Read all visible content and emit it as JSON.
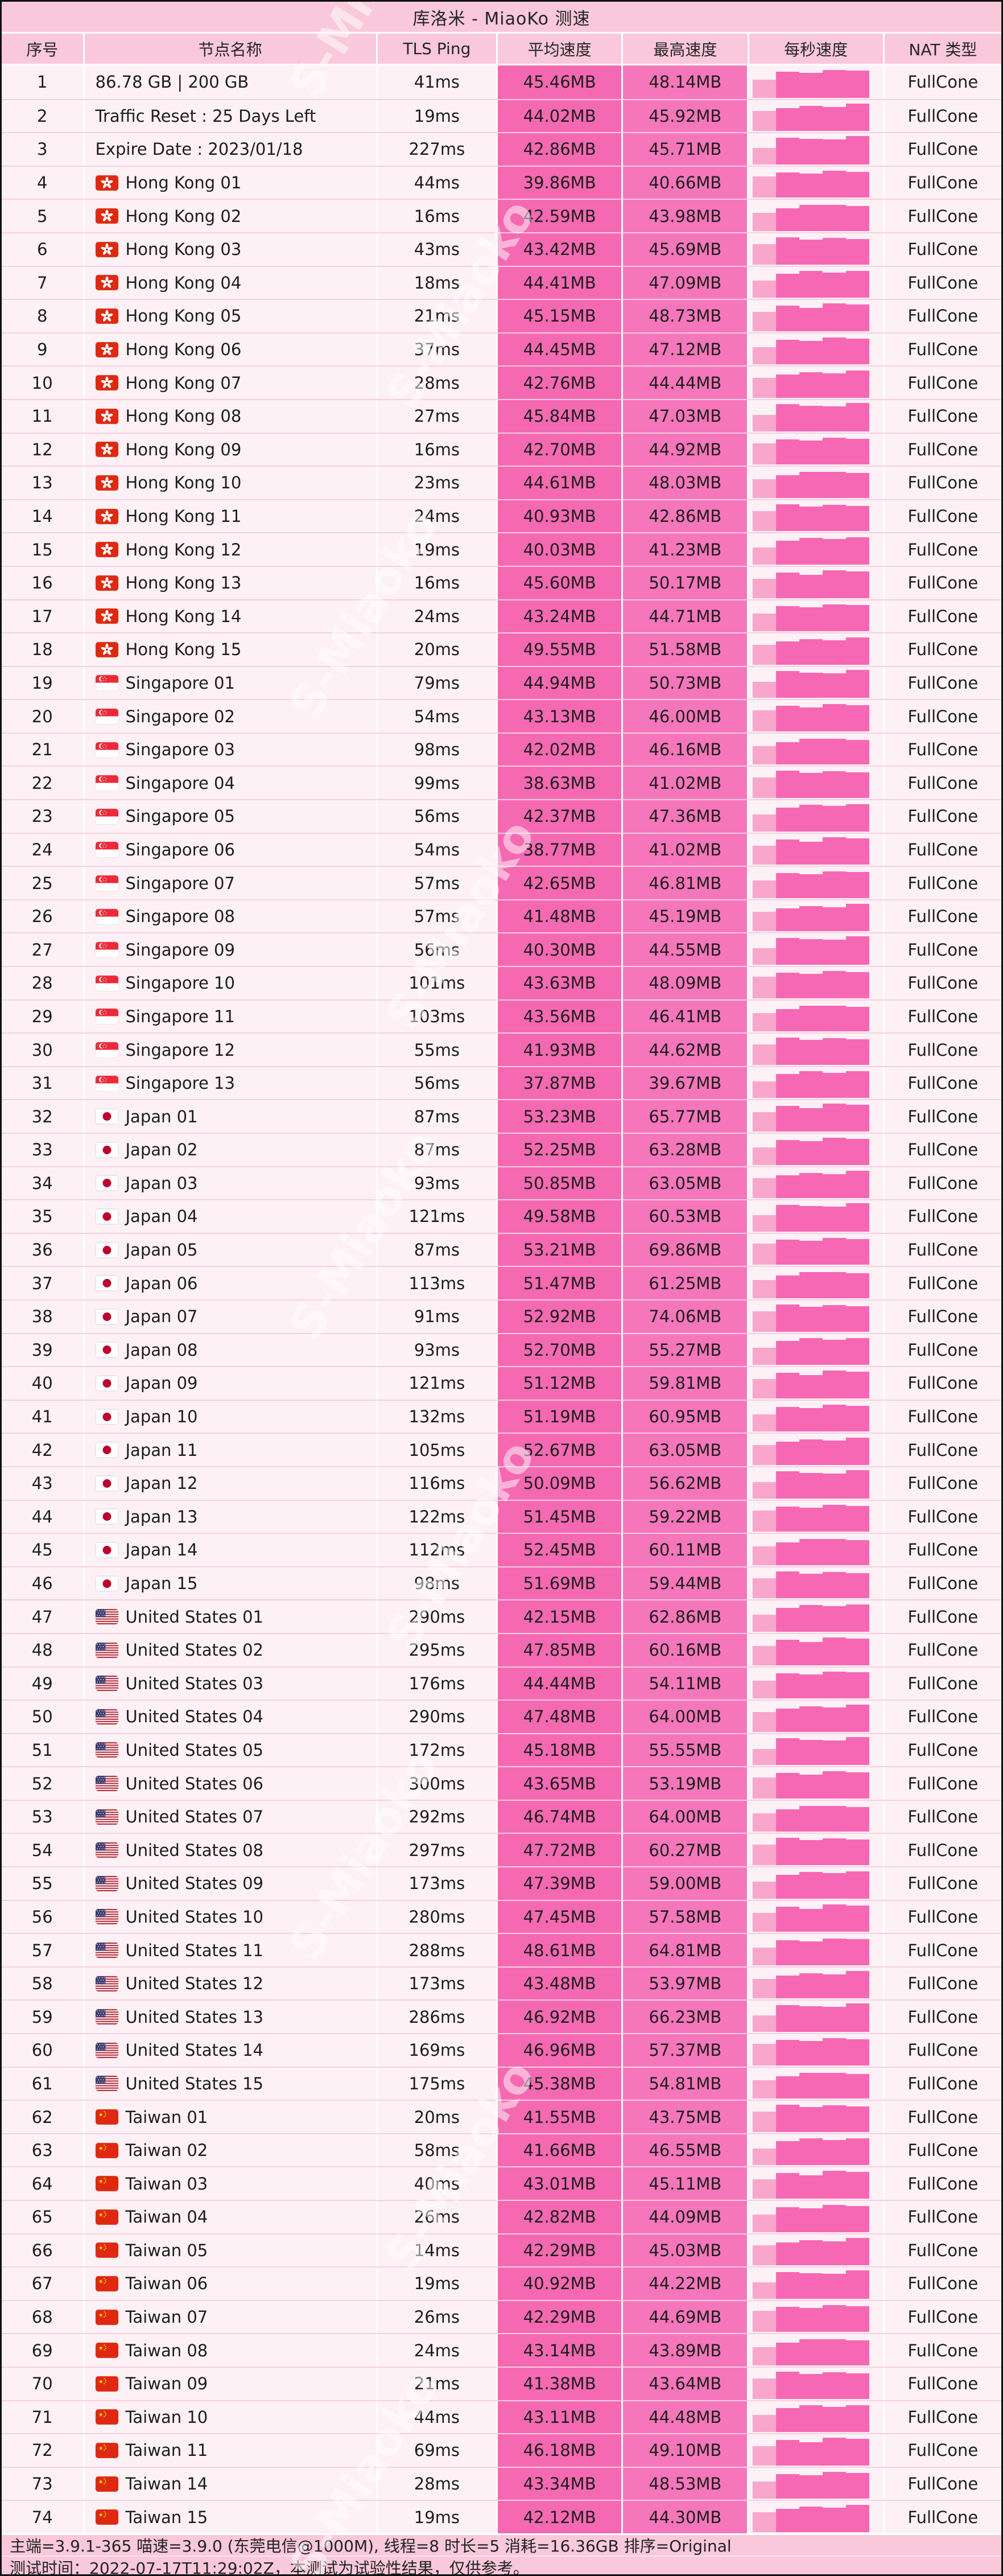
{
  "title": "库洛米 - MiaoKo 测速",
  "watermark": "S-Miaoko",
  "columns": [
    "序号",
    "节点名称",
    "TLS Ping",
    "平均速度",
    "最高速度",
    "每秒速度",
    "NAT 类型"
  ],
  "colors": {
    "header_bg": "#F9C8DA",
    "row_bg": "#FDF1F6",
    "avg_cell_pink": "#F569B2",
    "max_cell_pink": "#F676BB",
    "spark_bar": "#F668B3",
    "spark_bar_light": "#F9A6CD",
    "row_separator": "#F8CFE0"
  },
  "footer": {
    "line1": "主端=3.9.1-365 喵速=3.9.0 (东莞电信@1000M), 线程=8 时长=5 消耗=16.36GB 排序=Original",
    "line2": "测试时间：2022-07-17T11:29:02Z，本测试为试验性结果，仅供参考。"
  },
  "rows": [
    {
      "no": "1",
      "flag": null,
      "name": "86.78 GB | 200 GB",
      "ping": "41ms",
      "avg": "45.46MB",
      "max": "48.14MB",
      "nat": "FullCone",
      "spark": [
        62,
        88,
        84,
        95,
        92
      ]
    },
    {
      "no": "2",
      "flag": null,
      "name": "Traffic Reset : 25 Days Left",
      "ping": "19ms",
      "avg": "44.02MB",
      "max": "45.92MB",
      "nat": "FullCone",
      "spark": [
        70,
        82,
        90,
        86,
        97
      ]
    },
    {
      "no": "3",
      "flag": null,
      "name": "Expire Date : 2023/01/18",
      "ping": "227ms",
      "avg": "42.86MB",
      "max": "45.71MB",
      "nat": "FullCone",
      "spark": [
        58,
        95,
        90,
        88,
        100
      ]
    },
    {
      "no": "4",
      "flag": "hk",
      "name": "Hong Kong 01",
      "ping": "44ms",
      "avg": "39.86MB",
      "max": "40.66MB",
      "nat": "FullCone",
      "spark": [
        75,
        90,
        85,
        96,
        92
      ]
    },
    {
      "no": "5",
      "flag": "hk",
      "name": "Hong Kong 02",
      "ping": "16ms",
      "avg": "42.59MB",
      "max": "43.98MB",
      "nat": "FullCone",
      "spark": [
        65,
        80,
        92,
        92,
        88
      ]
    },
    {
      "no": "6",
      "flag": "hk",
      "name": "Hong Kong 03",
      "ping": "43ms",
      "avg": "43.42MB",
      "max": "45.69MB",
      "nat": "FullCone",
      "spark": [
        72,
        96,
        88,
        94,
        90
      ]
    },
    {
      "no": "7",
      "flag": "hk",
      "name": "Hong Kong 04",
      "ping": "18ms",
      "avg": "44.41MB",
      "max": "47.09MB",
      "nat": "FullCone",
      "spark": [
        60,
        85,
        95,
        90,
        96
      ]
    },
    {
      "no": "8",
      "flag": "hk",
      "name": "Hong Kong 05",
      "ping": "21ms",
      "avg": "45.15MB",
      "max": "48.73MB",
      "nat": "FullCone",
      "spark": [
        68,
        90,
        82,
        98,
        94
      ]
    },
    {
      "no": "9",
      "flag": "hk",
      "name": "Hong Kong 06",
      "ping": "37ms",
      "avg": "44.45MB",
      "max": "47.12MB",
      "nat": "FullCone",
      "spark": [
        62,
        88,
        84,
        95,
        92
      ]
    },
    {
      "no": "10",
      "flag": "hk",
      "name": "Hong Kong 07",
      "ping": "28ms",
      "avg": "42.76MB",
      "max": "44.44MB",
      "nat": "FullCone",
      "spark": [
        70,
        82,
        90,
        86,
        97
      ]
    },
    {
      "no": "11",
      "flag": "hk",
      "name": "Hong Kong 08",
      "ping": "27ms",
      "avg": "45.84MB",
      "max": "47.03MB",
      "nat": "FullCone",
      "spark": [
        58,
        95,
        90,
        88,
        100
      ]
    },
    {
      "no": "12",
      "flag": "hk",
      "name": "Hong Kong 09",
      "ping": "16ms",
      "avg": "42.70MB",
      "max": "44.92MB",
      "nat": "FullCone",
      "spark": [
        75,
        90,
        85,
        96,
        92
      ]
    },
    {
      "no": "13",
      "flag": "hk",
      "name": "Hong Kong 10",
      "ping": "23ms",
      "avg": "44.61MB",
      "max": "48.03MB",
      "nat": "FullCone",
      "spark": [
        65,
        80,
        92,
        92,
        88
      ]
    },
    {
      "no": "14",
      "flag": "hk",
      "name": "Hong Kong 11",
      "ping": "24ms",
      "avg": "40.93MB",
      "max": "42.86MB",
      "nat": "FullCone",
      "spark": [
        72,
        96,
        88,
        94,
        90
      ]
    },
    {
      "no": "15",
      "flag": "hk",
      "name": "Hong Kong 12",
      "ping": "19ms",
      "avg": "40.03MB",
      "max": "41.23MB",
      "nat": "FullCone",
      "spark": [
        60,
        85,
        95,
        90,
        96
      ]
    },
    {
      "no": "16",
      "flag": "hk",
      "name": "Hong Kong 13",
      "ping": "16ms",
      "avg": "45.60MB",
      "max": "50.17MB",
      "nat": "FullCone",
      "spark": [
        68,
        90,
        82,
        98,
        94
      ]
    },
    {
      "no": "17",
      "flag": "hk",
      "name": "Hong Kong 14",
      "ping": "24ms",
      "avg": "43.24MB",
      "max": "44.71MB",
      "nat": "FullCone",
      "spark": [
        62,
        88,
        84,
        95,
        92
      ]
    },
    {
      "no": "18",
      "flag": "hk",
      "name": "Hong Kong 15",
      "ping": "20ms",
      "avg": "49.55MB",
      "max": "51.58MB",
      "nat": "FullCone",
      "spark": [
        70,
        82,
        90,
        86,
        97
      ]
    },
    {
      "no": "19",
      "flag": "sg",
      "name": "Singapore 01",
      "ping": "79ms",
      "avg": "44.94MB",
      "max": "50.73MB",
      "nat": "FullCone",
      "spark": [
        58,
        95,
        90,
        88,
        100
      ]
    },
    {
      "no": "20",
      "flag": "sg",
      "name": "Singapore 02",
      "ping": "54ms",
      "avg": "43.13MB",
      "max": "46.00MB",
      "nat": "FullCone",
      "spark": [
        75,
        90,
        85,
        96,
        92
      ]
    },
    {
      "no": "21",
      "flag": "sg",
      "name": "Singapore 03",
      "ping": "98ms",
      "avg": "42.02MB",
      "max": "46.16MB",
      "nat": "FullCone",
      "spark": [
        65,
        80,
        92,
        92,
        88
      ]
    },
    {
      "no": "22",
      "flag": "sg",
      "name": "Singapore 04",
      "ping": "99ms",
      "avg": "38.63MB",
      "max": "41.02MB",
      "nat": "FullCone",
      "spark": [
        72,
        96,
        88,
        94,
        90
      ]
    },
    {
      "no": "23",
      "flag": "sg",
      "name": "Singapore 05",
      "ping": "56ms",
      "avg": "42.37MB",
      "max": "47.36MB",
      "nat": "FullCone",
      "spark": [
        60,
        85,
        95,
        90,
        96
      ]
    },
    {
      "no": "24",
      "flag": "sg",
      "name": "Singapore 06",
      "ping": "54ms",
      "avg": "38.77MB",
      "max": "41.02MB",
      "nat": "FullCone",
      "spark": [
        68,
        90,
        82,
        98,
        94
      ]
    },
    {
      "no": "25",
      "flag": "sg",
      "name": "Singapore 07",
      "ping": "57ms",
      "avg": "42.65MB",
      "max": "46.81MB",
      "nat": "FullCone",
      "spark": [
        62,
        88,
        84,
        95,
        92
      ]
    },
    {
      "no": "26",
      "flag": "sg",
      "name": "Singapore 08",
      "ping": "57ms",
      "avg": "41.48MB",
      "max": "45.19MB",
      "nat": "FullCone",
      "spark": [
        70,
        82,
        90,
        86,
        97
      ]
    },
    {
      "no": "27",
      "flag": "sg",
      "name": "Singapore 09",
      "ping": "56ms",
      "avg": "40.30MB",
      "max": "44.55MB",
      "nat": "FullCone",
      "spark": [
        58,
        95,
        90,
        88,
        100
      ]
    },
    {
      "no": "28",
      "flag": "sg",
      "name": "Singapore 10",
      "ping": "101ms",
      "avg": "43.63MB",
      "max": "48.09MB",
      "nat": "FullCone",
      "spark": [
        75,
        90,
        85,
        96,
        92
      ]
    },
    {
      "no": "29",
      "flag": "sg",
      "name": "Singapore 11",
      "ping": "103ms",
      "avg": "43.56MB",
      "max": "46.41MB",
      "nat": "FullCone",
      "spark": [
        65,
        80,
        92,
        92,
        88
      ]
    },
    {
      "no": "30",
      "flag": "sg",
      "name": "Singapore 12",
      "ping": "55ms",
      "avg": "41.93MB",
      "max": "44.62MB",
      "nat": "FullCone",
      "spark": [
        72,
        96,
        88,
        94,
        90
      ]
    },
    {
      "no": "31",
      "flag": "sg",
      "name": "Singapore 13",
      "ping": "56ms",
      "avg": "37.87MB",
      "max": "39.67MB",
      "nat": "FullCone",
      "spark": [
        60,
        85,
        95,
        90,
        96
      ]
    },
    {
      "no": "32",
      "flag": "jp",
      "name": "Japan 01",
      "ping": "87ms",
      "avg": "53.23MB",
      "max": "65.77MB",
      "nat": "FullCone",
      "spark": [
        68,
        90,
        82,
        98,
        94
      ]
    },
    {
      "no": "33",
      "flag": "jp",
      "name": "Japan 02",
      "ping": "87ms",
      "avg": "52.25MB",
      "max": "63.28MB",
      "nat": "FullCone",
      "spark": [
        62,
        88,
        84,
        95,
        92
      ]
    },
    {
      "no": "34",
      "flag": "jp",
      "name": "Japan 03",
      "ping": "93ms",
      "avg": "50.85MB",
      "max": "63.05MB",
      "nat": "FullCone",
      "spark": [
        70,
        82,
        90,
        86,
        97
      ]
    },
    {
      "no": "35",
      "flag": "jp",
      "name": "Japan 04",
      "ping": "121ms",
      "avg": "49.58MB",
      "max": "60.53MB",
      "nat": "FullCone",
      "spark": [
        58,
        95,
        90,
        88,
        100
      ]
    },
    {
      "no": "36",
      "flag": "jp",
      "name": "Japan 05",
      "ping": "87ms",
      "avg": "53.21MB",
      "max": "69.86MB",
      "nat": "FullCone",
      "spark": [
        75,
        90,
        85,
        96,
        92
      ]
    },
    {
      "no": "37",
      "flag": "jp",
      "name": "Japan 06",
      "ping": "113ms",
      "avg": "51.47MB",
      "max": "61.25MB",
      "nat": "FullCone",
      "spark": [
        65,
        80,
        92,
        92,
        88
      ]
    },
    {
      "no": "38",
      "flag": "jp",
      "name": "Japan 07",
      "ping": "91ms",
      "avg": "52.92MB",
      "max": "74.06MB",
      "nat": "FullCone",
      "spark": [
        72,
        96,
        88,
        94,
        90
      ]
    },
    {
      "no": "39",
      "flag": "jp",
      "name": "Japan 08",
      "ping": "93ms",
      "avg": "52.70MB",
      "max": "55.27MB",
      "nat": "FullCone",
      "spark": [
        60,
        85,
        95,
        90,
        96
      ]
    },
    {
      "no": "40",
      "flag": "jp",
      "name": "Japan 09",
      "ping": "121ms",
      "avg": "51.12MB",
      "max": "59.81MB",
      "nat": "FullCone",
      "spark": [
        68,
        90,
        82,
        98,
        94
      ]
    },
    {
      "no": "41",
      "flag": "jp",
      "name": "Japan 10",
      "ping": "132ms",
      "avg": "51.19MB",
      "max": "60.95MB",
      "nat": "FullCone",
      "spark": [
        62,
        88,
        84,
        95,
        92
      ]
    },
    {
      "no": "42",
      "flag": "jp",
      "name": "Japan 11",
      "ping": "105ms",
      "avg": "52.67MB",
      "max": "63.05MB",
      "nat": "FullCone",
      "spark": [
        70,
        82,
        90,
        86,
        97
      ]
    },
    {
      "no": "43",
      "flag": "jp",
      "name": "Japan 12",
      "ping": "116ms",
      "avg": "50.09MB",
      "max": "56.62MB",
      "nat": "FullCone",
      "spark": [
        58,
        95,
        90,
        88,
        100
      ]
    },
    {
      "no": "44",
      "flag": "jp",
      "name": "Japan 13",
      "ping": "122ms",
      "avg": "51.45MB",
      "max": "59.22MB",
      "nat": "FullCone",
      "spark": [
        75,
        90,
        85,
        96,
        92
      ]
    },
    {
      "no": "45",
      "flag": "jp",
      "name": "Japan 14",
      "ping": "112ms",
      "avg": "52.45MB",
      "max": "60.11MB",
      "nat": "FullCone",
      "spark": [
        65,
        80,
        92,
        92,
        88
      ]
    },
    {
      "no": "46",
      "flag": "jp",
      "name": "Japan 15",
      "ping": "98ms",
      "avg": "51.69MB",
      "max": "59.44MB",
      "nat": "FullCone",
      "spark": [
        72,
        96,
        88,
        94,
        90
      ]
    },
    {
      "no": "47",
      "flag": "us",
      "name": "United States 01",
      "ping": "290ms",
      "avg": "42.15MB",
      "max": "62.86MB",
      "nat": "FullCone",
      "spark": [
        60,
        85,
        95,
        90,
        96
      ]
    },
    {
      "no": "48",
      "flag": "us",
      "name": "United States 02",
      "ping": "295ms",
      "avg": "47.85MB",
      "max": "60.16MB",
      "nat": "FullCone",
      "spark": [
        68,
        90,
        82,
        98,
        94
      ]
    },
    {
      "no": "49",
      "flag": "us",
      "name": "United States 03",
      "ping": "176ms",
      "avg": "44.44MB",
      "max": "54.11MB",
      "nat": "FullCone",
      "spark": [
        62,
        88,
        84,
        95,
        92
      ]
    },
    {
      "no": "50",
      "flag": "us",
      "name": "United States 04",
      "ping": "290ms",
      "avg": "47.48MB",
      "max": "64.00MB",
      "nat": "FullCone",
      "spark": [
        70,
        82,
        90,
        86,
        97
      ]
    },
    {
      "no": "51",
      "flag": "us",
      "name": "United States 05",
      "ping": "172ms",
      "avg": "45.18MB",
      "max": "55.55MB",
      "nat": "FullCone",
      "spark": [
        58,
        95,
        90,
        88,
        100
      ]
    },
    {
      "no": "52",
      "flag": "us",
      "name": "United States 06",
      "ping": "300ms",
      "avg": "43.65MB",
      "max": "53.19MB",
      "nat": "FullCone",
      "spark": [
        75,
        90,
        85,
        96,
        92
      ]
    },
    {
      "no": "53",
      "flag": "us",
      "name": "United States 07",
      "ping": "292ms",
      "avg": "46.74MB",
      "max": "64.00MB",
      "nat": "FullCone",
      "spark": [
        65,
        80,
        92,
        92,
        88
      ]
    },
    {
      "no": "54",
      "flag": "us",
      "name": "United States 08",
      "ping": "297ms",
      "avg": "47.72MB",
      "max": "60.27MB",
      "nat": "FullCone",
      "spark": [
        72,
        96,
        88,
        94,
        90
      ]
    },
    {
      "no": "55",
      "flag": "us",
      "name": "United States 09",
      "ping": "173ms",
      "avg": "47.39MB",
      "max": "59.00MB",
      "nat": "FullCone",
      "spark": [
        60,
        85,
        95,
        90,
        96
      ]
    },
    {
      "no": "56",
      "flag": "us",
      "name": "United States 10",
      "ping": "280ms",
      "avg": "47.45MB",
      "max": "57.58MB",
      "nat": "FullCone",
      "spark": [
        68,
        90,
        82,
        98,
        94
      ]
    },
    {
      "no": "57",
      "flag": "us",
      "name": "United States 11",
      "ping": "288ms",
      "avg": "48.61MB",
      "max": "64.81MB",
      "nat": "FullCone",
      "spark": [
        62,
        88,
        84,
        95,
        92
      ]
    },
    {
      "no": "58",
      "flag": "us",
      "name": "United States 12",
      "ping": "173ms",
      "avg": "43.48MB",
      "max": "53.97MB",
      "nat": "FullCone",
      "spark": [
        70,
        82,
        90,
        86,
        97
      ]
    },
    {
      "no": "59",
      "flag": "us",
      "name": "United States 13",
      "ping": "286ms",
      "avg": "46.92MB",
      "max": "66.23MB",
      "nat": "FullCone",
      "spark": [
        58,
        95,
        90,
        88,
        100
      ]
    },
    {
      "no": "60",
      "flag": "us",
      "name": "United States 14",
      "ping": "169ms",
      "avg": "46.96MB",
      "max": "57.37MB",
      "nat": "FullCone",
      "spark": [
        75,
        90,
        85,
        96,
        92
      ]
    },
    {
      "no": "61",
      "flag": "us",
      "name": "United States 15",
      "ping": "175ms",
      "avg": "45.38MB",
      "max": "54.81MB",
      "nat": "FullCone",
      "spark": [
        65,
        80,
        92,
        92,
        88
      ]
    },
    {
      "no": "62",
      "flag": "cn",
      "name": "Taiwan 01",
      "ping": "20ms",
      "avg": "41.55MB",
      "max": "43.75MB",
      "nat": "FullCone",
      "spark": [
        72,
        96,
        88,
        94,
        90
      ]
    },
    {
      "no": "63",
      "flag": "cn",
      "name": "Taiwan 02",
      "ping": "58ms",
      "avg": "41.66MB",
      "max": "46.55MB",
      "nat": "FullCone",
      "spark": [
        60,
        85,
        95,
        90,
        96
      ]
    },
    {
      "no": "64",
      "flag": "cn",
      "name": "Taiwan 03",
      "ping": "40ms",
      "avg": "43.01MB",
      "max": "45.11MB",
      "nat": "FullCone",
      "spark": [
        68,
        90,
        82,
        98,
        94
      ]
    },
    {
      "no": "65",
      "flag": "cn",
      "name": "Taiwan 04",
      "ping": "26ms",
      "avg": "42.82MB",
      "max": "44.09MB",
      "nat": "FullCone",
      "spark": [
        62,
        88,
        84,
        95,
        92
      ]
    },
    {
      "no": "66",
      "flag": "cn",
      "name": "Taiwan 05",
      "ping": "14ms",
      "avg": "42.29MB",
      "max": "45.03MB",
      "nat": "FullCone",
      "spark": [
        70,
        82,
        90,
        86,
        97
      ]
    },
    {
      "no": "67",
      "flag": "cn",
      "name": "Taiwan 06",
      "ping": "19ms",
      "avg": "40.92MB",
      "max": "44.22MB",
      "nat": "FullCone",
      "spark": [
        58,
        95,
        90,
        88,
        100
      ]
    },
    {
      "no": "68",
      "flag": "cn",
      "name": "Taiwan 07",
      "ping": "26ms",
      "avg": "42.29MB",
      "max": "44.69MB",
      "nat": "FullCone",
      "spark": [
        75,
        90,
        85,
        96,
        92
      ]
    },
    {
      "no": "69",
      "flag": "cn",
      "name": "Taiwan 08",
      "ping": "24ms",
      "avg": "43.14MB",
      "max": "43.89MB",
      "nat": "FullCone",
      "spark": [
        65,
        80,
        92,
        92,
        88
      ]
    },
    {
      "no": "70",
      "flag": "cn",
      "name": "Taiwan 09",
      "ping": "21ms",
      "avg": "41.38MB",
      "max": "43.64MB",
      "nat": "FullCone",
      "spark": [
        72,
        96,
        88,
        94,
        90
      ]
    },
    {
      "no": "71",
      "flag": "cn",
      "name": "Taiwan 10",
      "ping": "44ms",
      "avg": "43.11MB",
      "max": "44.48MB",
      "nat": "FullCone",
      "spark": [
        60,
        85,
        95,
        90,
        96
      ]
    },
    {
      "no": "72",
      "flag": "cn",
      "name": "Taiwan 11",
      "ping": "69ms",
      "avg": "46.18MB",
      "max": "49.10MB",
      "nat": "FullCone",
      "spark": [
        68,
        90,
        82,
        98,
        94
      ]
    },
    {
      "no": "73",
      "flag": "cn",
      "name": "Taiwan 14",
      "ping": "28ms",
      "avg": "43.34MB",
      "max": "48.53MB",
      "nat": "FullCone",
      "spark": [
        62,
        88,
        84,
        95,
        92
      ]
    },
    {
      "no": "74",
      "flag": "cn",
      "name": "Taiwan 15",
      "ping": "19ms",
      "avg": "42.12MB",
      "max": "44.30MB",
      "nat": "FullCone",
      "spark": [
        70,
        82,
        90,
        86,
        97
      ]
    }
  ]
}
